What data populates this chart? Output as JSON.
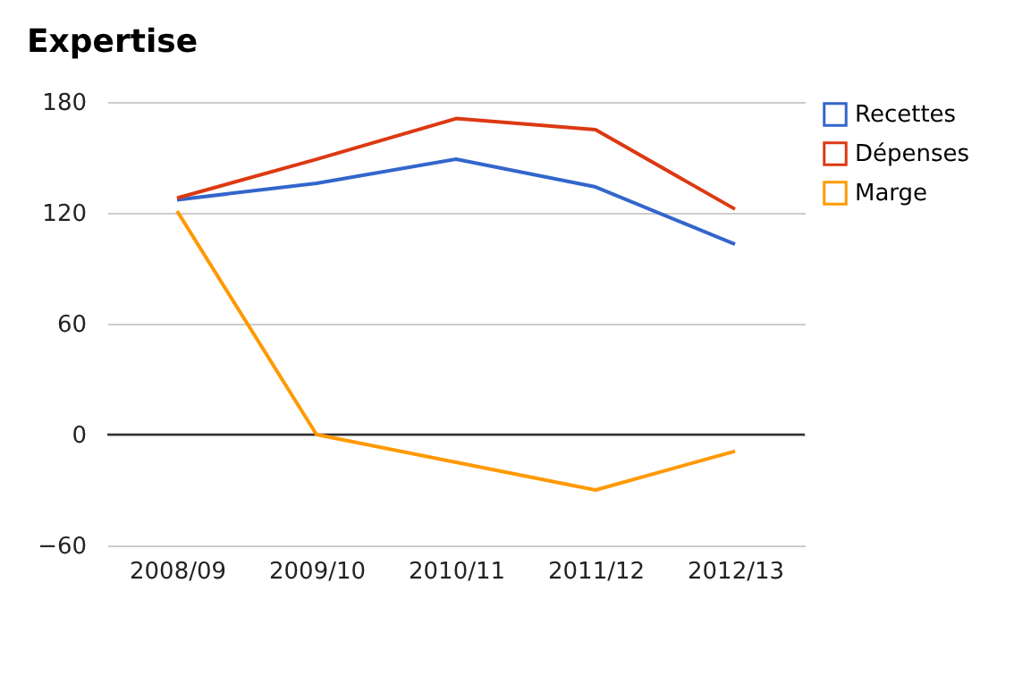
{
  "chart_data": {
    "type": "line",
    "title": "Expertise",
    "categories": [
      "2008/09",
      "2009/10",
      "2010/11",
      "2011/12",
      "2012/13"
    ],
    "series": [
      {
        "name": "Recettes",
        "color": "#3366cc",
        "values": [
          127,
          136,
          149,
          134,
          103
        ]
      },
      {
        "name": "Dépenses",
        "color": "#dc3912",
        "values": [
          128,
          149,
          171,
          165,
          122
        ]
      },
      {
        "name": "Marge",
        "color": "#ff9900",
        "values": [
          121,
          0,
          -15,
          -30,
          -9
        ]
      }
    ],
    "ylim": [
      -60,
      180
    ],
    "yticks": [
      -60,
      0,
      60,
      120,
      180
    ],
    "grid": "y",
    "legend": "top right",
    "ref_lines": [
      {
        "axis": "y",
        "value": 0,
        "color": "#333333"
      }
    ]
  }
}
